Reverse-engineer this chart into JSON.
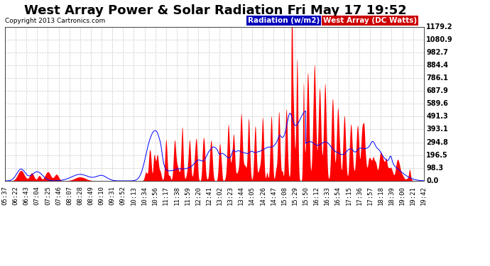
{
  "title": "West Array Power & Solar Radiation Fri May 17 19:52",
  "copyright": "Copyright 2013 Cartronics.com",
  "legend_radiation": "Radiation (w/m2)",
  "legend_west": "West Array (DC Watts)",
  "ymin": 0.0,
  "ymax": 1179.2,
  "yticks": [
    0.0,
    98.3,
    196.5,
    294.8,
    393.1,
    491.3,
    589.6,
    687.9,
    786.1,
    884.4,
    982.7,
    1080.9,
    1179.2
  ],
  "bg_color": "#ffffff",
  "plot_bg_color": "#ffffff",
  "grid_color": "#c8c8c8",
  "fill_color": "#ff0000",
  "line_color": "#0000ff",
  "xtick_labels": [
    "05:37",
    "06:22",
    "06:43",
    "07:04",
    "07:25",
    "07:46",
    "08:07",
    "08:28",
    "08:49",
    "09:10",
    "09:31",
    "09:52",
    "10:13",
    "10:34",
    "10:56",
    "11:17",
    "11:38",
    "11:59",
    "12:20",
    "12:41",
    "13:02",
    "13:23",
    "13:44",
    "14:05",
    "14:26",
    "14:47",
    "15:08",
    "15:29",
    "15:50",
    "16:12",
    "16:33",
    "16:54",
    "17:15",
    "17:36",
    "17:57",
    "18:18",
    "18:39",
    "19:00",
    "19:21",
    "19:42"
  ],
  "title_fontsize": 13,
  "tick_fontsize": 6.5,
  "copyright_fontsize": 6.5,
  "legend_fontsize": 7.5
}
